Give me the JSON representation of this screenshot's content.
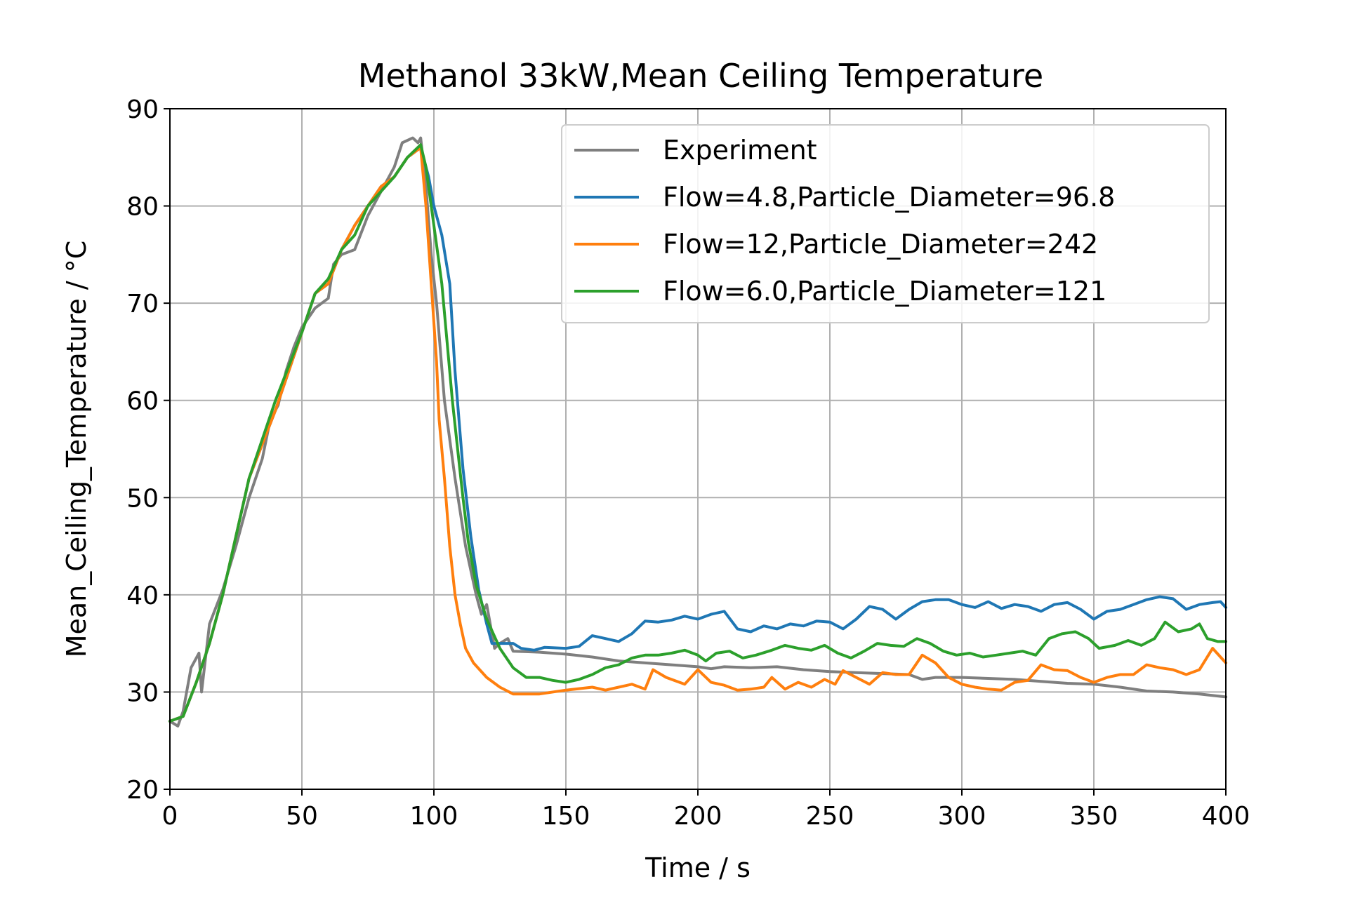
{
  "chart_data": {
    "type": "line",
    "title": "Methanol 33kW,Mean Ceiling Temperature",
    "xlabel": "Time / s",
    "ylabel": "Mean_Ceiling_Temperature / °C",
    "xlim": [
      0,
      400
    ],
    "ylim": [
      20,
      90
    ],
    "xticks": [
      0,
      50,
      100,
      150,
      200,
      250,
      300,
      350,
      400
    ],
    "yticks": [
      20,
      30,
      40,
      50,
      60,
      70,
      80,
      90
    ],
    "grid": true,
    "legend_position": "top-right",
    "series": [
      {
        "name": "Experiment",
        "color": "#7f7f7f",
        "points": [
          [
            0,
            27
          ],
          [
            3,
            26.5
          ],
          [
            5,
            28
          ],
          [
            8,
            32.5
          ],
          [
            11,
            34
          ],
          [
            12,
            30
          ],
          [
            15,
            37
          ],
          [
            20,
            40.5
          ],
          [
            25,
            45
          ],
          [
            30,
            50
          ],
          [
            35,
            54
          ],
          [
            38,
            58
          ],
          [
            41,
            59.5
          ],
          [
            44,
            63
          ],
          [
            47,
            65.5
          ],
          [
            50,
            67.5
          ],
          [
            55,
            69.5
          ],
          [
            60,
            70.5
          ],
          [
            62,
            74
          ],
          [
            65,
            75
          ],
          [
            70,
            75.5
          ],
          [
            75,
            79
          ],
          [
            80,
            81.5
          ],
          [
            85,
            84
          ],
          [
            88,
            86.5
          ],
          [
            92,
            87
          ],
          [
            94,
            86.5
          ],
          [
            95,
            87
          ],
          [
            97,
            82
          ],
          [
            99,
            75
          ],
          [
            101,
            70
          ],
          [
            104,
            60
          ],
          [
            108,
            52
          ],
          [
            112,
            45
          ],
          [
            116,
            40
          ],
          [
            118,
            38
          ],
          [
            120,
            39
          ],
          [
            123,
            34.5
          ],
          [
            125,
            35
          ],
          [
            128,
            35.5
          ],
          [
            130,
            34.2
          ],
          [
            140,
            34.1
          ],
          [
            150,
            33.9
          ],
          [
            160,
            33.6
          ],
          [
            170,
            33.2
          ],
          [
            180,
            33
          ],
          [
            190,
            32.8
          ],
          [
            200,
            32.6
          ],
          [
            205,
            32.4
          ],
          [
            210,
            32.6
          ],
          [
            220,
            32.5
          ],
          [
            230,
            32.6
          ],
          [
            240,
            32.3
          ],
          [
            250,
            32.1
          ],
          [
            260,
            32
          ],
          [
            270,
            31.9
          ],
          [
            280,
            31.8
          ],
          [
            285,
            31.3
          ],
          [
            290,
            31.5
          ],
          [
            300,
            31.5
          ],
          [
            310,
            31.4
          ],
          [
            320,
            31.3
          ],
          [
            330,
            31.1
          ],
          [
            340,
            30.9
          ],
          [
            350,
            30.8
          ],
          [
            360,
            30.5
          ],
          [
            370,
            30.1
          ],
          [
            380,
            30
          ],
          [
            390,
            29.8
          ],
          [
            400,
            29.5
          ]
        ]
      },
      {
        "name": "Flow=4.8,Particle_Diameter=96.8",
        "color": "#1f77b4",
        "points": [
          [
            0,
            27
          ],
          [
            5,
            27.5
          ],
          [
            10,
            31
          ],
          [
            15,
            35
          ],
          [
            20,
            40
          ],
          [
            25,
            46
          ],
          [
            30,
            52
          ],
          [
            40,
            59
          ],
          [
            50,
            67
          ],
          [
            55,
            71
          ],
          [
            60,
            72
          ],
          [
            65,
            75.5
          ],
          [
            70,
            78
          ],
          [
            75,
            80
          ],
          [
            80,
            82
          ],
          [
            85,
            83
          ],
          [
            90,
            85
          ],
          [
            95,
            86
          ],
          [
            98,
            83
          ],
          [
            100,
            80
          ],
          [
            103,
            77
          ],
          [
            106,
            72
          ],
          [
            108,
            63
          ],
          [
            111,
            53
          ],
          [
            114,
            46
          ],
          [
            117,
            40.5
          ],
          [
            120,
            37
          ],
          [
            122,
            35
          ],
          [
            125,
            35
          ],
          [
            130,
            35
          ],
          [
            133,
            34.5
          ],
          [
            138,
            34.3
          ],
          [
            142,
            34.6
          ],
          [
            150,
            34.5
          ],
          [
            155,
            34.7
          ],
          [
            160,
            35.8
          ],
          [
            165,
            35.5
          ],
          [
            170,
            35.2
          ],
          [
            175,
            36
          ],
          [
            180,
            37.3
          ],
          [
            185,
            37.2
          ],
          [
            190,
            37.4
          ],
          [
            195,
            37.8
          ],
          [
            200,
            37.5
          ],
          [
            205,
            38
          ],
          [
            210,
            38.3
          ],
          [
            215,
            36.5
          ],
          [
            220,
            36.2
          ],
          [
            225,
            36.8
          ],
          [
            230,
            36.5
          ],
          [
            235,
            37
          ],
          [
            240,
            36.8
          ],
          [
            245,
            37.3
          ],
          [
            250,
            37.2
          ],
          [
            255,
            36.5
          ],
          [
            260,
            37.5
          ],
          [
            265,
            38.8
          ],
          [
            270,
            38.5
          ],
          [
            275,
            37.5
          ],
          [
            280,
            38.5
          ],
          [
            285,
            39.3
          ],
          [
            290,
            39.5
          ],
          [
            295,
            39.5
          ],
          [
            300,
            39
          ],
          [
            305,
            38.7
          ],
          [
            310,
            39.3
          ],
          [
            315,
            38.6
          ],
          [
            320,
            39
          ],
          [
            325,
            38.8
          ],
          [
            330,
            38.3
          ],
          [
            335,
            39
          ],
          [
            340,
            39.2
          ],
          [
            345,
            38.5
          ],
          [
            350,
            37.5
          ],
          [
            355,
            38.3
          ],
          [
            360,
            38.5
          ],
          [
            365,
            39
          ],
          [
            370,
            39.5
          ],
          [
            375,
            39.8
          ],
          [
            380,
            39.6
          ],
          [
            385,
            38.5
          ],
          [
            390,
            39
          ],
          [
            395,
            39.2
          ],
          [
            398,
            39.3
          ],
          [
            400,
            38.7
          ]
        ]
      },
      {
        "name": "Flow=12,Particle_Diameter=242",
        "color": "#ff7f0e",
        "points": [
          [
            0,
            27
          ],
          [
            5,
            27.5
          ],
          [
            10,
            31
          ],
          [
            15,
            35
          ],
          [
            20,
            40
          ],
          [
            25,
            46
          ],
          [
            30,
            52
          ],
          [
            40,
            59
          ],
          [
            50,
            67
          ],
          [
            55,
            71
          ],
          [
            60,
            72
          ],
          [
            65,
            75.5
          ],
          [
            70,
            78
          ],
          [
            75,
            80
          ],
          [
            80,
            82
          ],
          [
            85,
            83
          ],
          [
            90,
            85
          ],
          [
            95,
            86
          ],
          [
            97,
            80
          ],
          [
            99,
            72
          ],
          [
            101,
            64
          ],
          [
            102,
            58
          ],
          [
            104,
            52
          ],
          [
            106,
            45
          ],
          [
            108,
            40
          ],
          [
            110,
            37
          ],
          [
            112,
            34.5
          ],
          [
            115,
            33
          ],
          [
            120,
            31.5
          ],
          [
            125,
            30.5
          ],
          [
            130,
            29.8
          ],
          [
            140,
            29.8
          ],
          [
            150,
            30.2
          ],
          [
            160,
            30.5
          ],
          [
            165,
            30.2
          ],
          [
            170,
            30.5
          ],
          [
            175,
            30.8
          ],
          [
            180,
            30.3
          ],
          [
            183,
            32.3
          ],
          [
            188,
            31.5
          ],
          [
            195,
            30.8
          ],
          [
            200,
            32.3
          ],
          [
            205,
            31
          ],
          [
            210,
            30.7
          ],
          [
            215,
            30.2
          ],
          [
            220,
            30.3
          ],
          [
            225,
            30.5
          ],
          [
            228,
            31.5
          ],
          [
            233,
            30.3
          ],
          [
            238,
            31
          ],
          [
            243,
            30.5
          ],
          [
            248,
            31.3
          ],
          [
            252,
            30.8
          ],
          [
            255,
            32.2
          ],
          [
            260,
            31.5
          ],
          [
            265,
            30.8
          ],
          [
            270,
            32
          ],
          [
            275,
            31.8
          ],
          [
            280,
            31.8
          ],
          [
            285,
            33.8
          ],
          [
            290,
            33
          ],
          [
            295,
            31.5
          ],
          [
            300,
            30.8
          ],
          [
            305,
            30.5
          ],
          [
            310,
            30.3
          ],
          [
            315,
            30.2
          ],
          [
            320,
            31
          ],
          [
            325,
            31.2
          ],
          [
            330,
            32.8
          ],
          [
            335,
            32.3
          ],
          [
            340,
            32.2
          ],
          [
            345,
            31.5
          ],
          [
            350,
            31
          ],
          [
            355,
            31.5
          ],
          [
            360,
            31.8
          ],
          [
            365,
            31.8
          ],
          [
            370,
            32.8
          ],
          [
            375,
            32.5
          ],
          [
            380,
            32.3
          ],
          [
            385,
            31.8
          ],
          [
            390,
            32.3
          ],
          [
            395,
            34.5
          ],
          [
            400,
            33
          ]
        ]
      },
      {
        "name": "Flow=6.0,Particle_Diameter=121",
        "color": "#2ca02c",
        "points": [
          [
            0,
            27
          ],
          [
            5,
            27.5
          ],
          [
            10,
            31
          ],
          [
            15,
            35
          ],
          [
            20,
            40
          ],
          [
            25,
            46
          ],
          [
            30,
            52
          ],
          [
            35,
            56
          ],
          [
            40,
            60
          ],
          [
            45,
            63.5
          ],
          [
            50,
            67
          ],
          [
            55,
            71
          ],
          [
            60,
            72.5
          ],
          [
            65,
            75.5
          ],
          [
            70,
            77
          ],
          [
            75,
            80
          ],
          [
            80,
            81.5
          ],
          [
            85,
            83
          ],
          [
            90,
            85
          ],
          [
            95,
            86.3
          ],
          [
            97,
            84
          ],
          [
            99,
            80
          ],
          [
            101,
            76
          ],
          [
            103,
            72
          ],
          [
            105,
            66
          ],
          [
            107,
            60
          ],
          [
            109,
            55
          ],
          [
            111,
            50
          ],
          [
            113,
            45.5
          ],
          [
            116,
            41
          ],
          [
            120,
            37.5
          ],
          [
            125,
            34.5
          ],
          [
            130,
            32.5
          ],
          [
            135,
            31.5
          ],
          [
            140,
            31.5
          ],
          [
            145,
            31.2
          ],
          [
            150,
            31
          ],
          [
            155,
            31.3
          ],
          [
            160,
            31.8
          ],
          [
            165,
            32.5
          ],
          [
            170,
            32.8
          ],
          [
            175,
            33.5
          ],
          [
            180,
            33.8
          ],
          [
            185,
            33.8
          ],
          [
            190,
            34
          ],
          [
            195,
            34.3
          ],
          [
            200,
            33.8
          ],
          [
            203,
            33.2
          ],
          [
            207,
            34
          ],
          [
            212,
            34.2
          ],
          [
            217,
            33.5
          ],
          [
            222,
            33.8
          ],
          [
            228,
            34.3
          ],
          [
            233,
            34.8
          ],
          [
            238,
            34.5
          ],
          [
            243,
            34.3
          ],
          [
            248,
            34.8
          ],
          [
            253,
            34
          ],
          [
            258,
            33.5
          ],
          [
            263,
            34.2
          ],
          [
            268,
            35
          ],
          [
            273,
            34.8
          ],
          [
            278,
            34.7
          ],
          [
            283,
            35.5
          ],
          [
            288,
            35
          ],
          [
            293,
            34.2
          ],
          [
            298,
            33.8
          ],
          [
            303,
            34
          ],
          [
            308,
            33.6
          ],
          [
            313,
            33.8
          ],
          [
            318,
            34
          ],
          [
            323,
            34.2
          ],
          [
            328,
            33.8
          ],
          [
            333,
            35.5
          ],
          [
            338,
            36
          ],
          [
            343,
            36.2
          ],
          [
            348,
            35.5
          ],
          [
            352,
            34.5
          ],
          [
            358,
            34.8
          ],
          [
            363,
            35.3
          ],
          [
            368,
            34.8
          ],
          [
            373,
            35.5
          ],
          [
            377,
            37.2
          ],
          [
            382,
            36.2
          ],
          [
            387,
            36.5
          ],
          [
            390,
            37
          ],
          [
            393,
            35.5
          ],
          [
            397,
            35.2
          ],
          [
            400,
            35.2
          ]
        ]
      }
    ]
  }
}
